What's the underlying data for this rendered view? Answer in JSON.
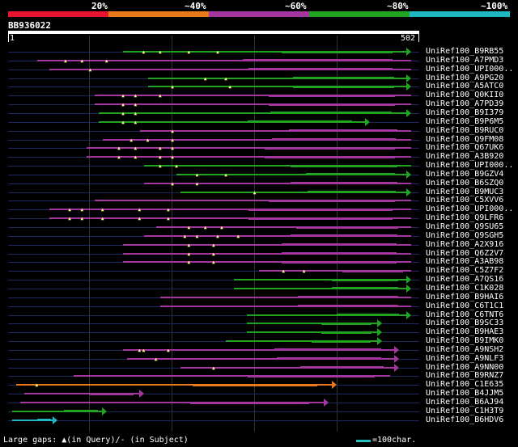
{
  "scale": {
    "labels": [
      "20%",
      "~40%",
      "~60%",
      "~80%",
      "~100%"
    ],
    "colors": [
      "#e8132e",
      "#e87a1c",
      "#a536a0",
      "#21a421",
      "#1fb8c0"
    ]
  },
  "query": {
    "id": "BB936022",
    "start": "1",
    "end": "502"
  },
  "legend": {
    "gaps": "Large gaps: ▲(in Query)/- (in Subject)",
    "scale": "=100char."
  },
  "hits": [
    {
      "label": "UniRef100_B9RB55",
      "color": "#21a421",
      "start": 0.28,
      "end": 0.98,
      "arrow": true,
      "gaps": [
        0.33,
        0.37,
        0.44,
        0.51
      ]
    },
    {
      "label": "UniRef100_A7PMD3",
      "color": "#a536a0",
      "start": 0.07,
      "end": 0.98,
      "arrow": false,
      "gaps": [
        0.14,
        0.18,
        0.24
      ]
    },
    {
      "label": "UniRef100_UPI000..",
      "color": "#a536a0",
      "start": 0.1,
      "end": 0.98,
      "arrow": false,
      "gaps": [
        0.2
      ]
    },
    {
      "label": "UniRef100_A9PG20",
      "color": "#21a421",
      "start": 0.34,
      "end": 0.98,
      "arrow": true,
      "gaps": [
        0.48,
        0.53
      ]
    },
    {
      "label": "UniRef100_A5ATC0",
      "color": "#21a421",
      "start": 0.34,
      "end": 0.98,
      "arrow": true,
      "gaps": [
        0.4,
        0.54
      ]
    },
    {
      "label": "UniRef100_Q0KII0",
      "color": "#a536a0",
      "start": 0.21,
      "end": 0.98,
      "arrow": false,
      "gaps": [
        0.28,
        0.31,
        0.37
      ]
    },
    {
      "label": "UniRef100_A7PD39",
      "color": "#a536a0",
      "start": 0.21,
      "end": 0.98,
      "arrow": false,
      "gaps": [
        0.28,
        0.31
      ]
    },
    {
      "label": "UniRef100_B9I379",
      "color": "#21a421",
      "start": 0.22,
      "end": 0.98,
      "arrow": true,
      "gaps": [
        0.28,
        0.31
      ]
    },
    {
      "label": "UniRef100_B9P6M5",
      "color": "#21a421",
      "start": 0.22,
      "end": 0.88,
      "arrow": true,
      "gaps": [
        0.28,
        0.31
      ]
    },
    {
      "label": "UniRef100_B9RUC0",
      "color": "#a536a0",
      "start": 0.32,
      "end": 0.98,
      "arrow": false,
      "gaps": [
        0.4
      ]
    },
    {
      "label": "UniRef100_Q9FM08",
      "color": "#a536a0",
      "start": 0.23,
      "end": 0.98,
      "arrow": false,
      "gaps": [
        0.3,
        0.34,
        0.4
      ]
    },
    {
      "label": "UniRef100_Q67UK6",
      "color": "#a536a0",
      "start": 0.19,
      "end": 0.98,
      "arrow": false,
      "gaps": [
        0.27,
        0.31,
        0.37,
        0.4
      ]
    },
    {
      "label": "UniRef100_A3B920",
      "color": "#a536a0",
      "start": 0.19,
      "end": 0.98,
      "arrow": false,
      "gaps": [
        0.27,
        0.31,
        0.37,
        0.4
      ]
    },
    {
      "label": "UniRef100_UPI000..",
      "color": "#21a421",
      "start": 0.33,
      "end": 0.98,
      "arrow": false,
      "gaps": [
        0.37,
        0.41
      ]
    },
    {
      "label": "UniRef100_B9GZV4",
      "color": "#21a421",
      "start": 0.41,
      "end": 0.98,
      "arrow": true,
      "gaps": [
        0.46,
        0.53
      ]
    },
    {
      "label": "UniRef100_B6SZQ0",
      "color": "#a536a0",
      "start": 0.33,
      "end": 0.98,
      "arrow": false,
      "gaps": [
        0.4,
        0.46
      ]
    },
    {
      "label": "UniRef100_B9MUC3",
      "color": "#21a421",
      "start": 0.42,
      "end": 0.98,
      "arrow": true,
      "gaps": [
        0.6
      ]
    },
    {
      "label": "UniRef100_C5XVV6",
      "color": "#a536a0",
      "start": 0.21,
      "end": 0.98,
      "arrow": false,
      "gaps": []
    },
    {
      "label": "UniRef100_UPI000..",
      "color": "#a536a0",
      "start": 0.1,
      "end": 0.98,
      "arrow": false,
      "gaps": [
        0.15,
        0.18,
        0.23,
        0.32,
        0.39
      ]
    },
    {
      "label": "UniRef100_Q9LFR6",
      "color": "#a536a0",
      "start": 0.1,
      "end": 0.98,
      "arrow": false,
      "gaps": [
        0.15,
        0.18,
        0.23,
        0.32,
        0.39
      ]
    },
    {
      "label": "UniRef100_Q9SU65",
      "color": "#a536a0",
      "start": 0.36,
      "end": 0.98,
      "arrow": false,
      "gaps": [
        0.44,
        0.48,
        0.52
      ]
    },
    {
      "label": "UniRef100_Q9SGH5",
      "color": "#a536a0",
      "start": 0.33,
      "end": 0.98,
      "arrow": false,
      "gaps": [
        0.43,
        0.46,
        0.51,
        0.56
      ]
    },
    {
      "label": "UniRef100_A2X916",
      "color": "#a536a0",
      "start": 0.28,
      "end": 0.98,
      "arrow": false,
      "gaps": [
        0.44,
        0.5
      ]
    },
    {
      "label": "UniRef100_Q6Z2V7",
      "color": "#a536a0",
      "start": 0.28,
      "end": 0.98,
      "arrow": false,
      "gaps": [
        0.44,
        0.5
      ]
    },
    {
      "label": "UniRef100_A3AB98",
      "color": "#a536a0",
      "start": 0.28,
      "end": 0.98,
      "arrow": false,
      "gaps": [
        0.44,
        0.5
      ]
    },
    {
      "label": "UniRef100_C5Z7F2",
      "color": "#a536a0",
      "start": 0.61,
      "end": 0.98,
      "arrow": false,
      "gaps": [
        0.67,
        0.72
      ]
    },
    {
      "label": "UniRef100_A7QS16",
      "color": "#21a421",
      "start": 0.55,
      "end": 0.98,
      "arrow": true,
      "gaps": []
    },
    {
      "label": "UniRef100_C1K028",
      "color": "#21a421",
      "start": 0.55,
      "end": 0.98,
      "arrow": true,
      "gaps": []
    },
    {
      "label": "UniRef100_B9HAI6",
      "color": "#a536a0",
      "start": 0.37,
      "end": 0.98,
      "arrow": false,
      "gaps": []
    },
    {
      "label": "UniRef100_C6T1C1",
      "color": "#a536a0",
      "start": 0.37,
      "end": 0.98,
      "arrow": false,
      "gaps": []
    },
    {
      "label": "UniRef100_C6TNT6",
      "color": "#21a421",
      "start": 0.58,
      "end": 0.98,
      "arrow": true,
      "gaps": []
    },
    {
      "label": "UniRef100_B9SC33",
      "color": "#21a421",
      "start": 0.58,
      "end": 0.91,
      "arrow": true,
      "gaps": []
    },
    {
      "label": "UniRef100_B9HAE3",
      "color": "#21a421",
      "start": 0.58,
      "end": 0.91,
      "arrow": true,
      "gaps": []
    },
    {
      "label": "UniRef100_B9IMK0",
      "color": "#21a421",
      "start": 0.53,
      "end": 0.91,
      "arrow": true,
      "gaps": []
    },
    {
      "label": "UniRef100_A9NSH2",
      "color": "#a536a0",
      "start": 0.28,
      "end": 0.95,
      "arrow": true,
      "gaps": [
        0.32,
        0.33,
        0.39
      ]
    },
    {
      "label": "UniRef100_A9NLF3",
      "color": "#a536a0",
      "start": 0.29,
      "end": 0.95,
      "arrow": true,
      "gaps": [
        0.36
      ]
    },
    {
      "label": "UniRef100_A9NN00",
      "color": "#a536a0",
      "start": 0.42,
      "end": 0.95,
      "arrow": true,
      "gaps": [
        0.5
      ]
    },
    {
      "label": "UniRef100_B9RNZ7",
      "color": "#a536a0",
      "start": 0.16,
      "end": 0.93,
      "arrow": false,
      "gaps": []
    },
    {
      "label": "UniRef100_C1E635",
      "color": "#e87a1c",
      "start": 0.02,
      "end": 0.8,
      "arrow": true,
      "gaps": [
        0.07
      ]
    },
    {
      "label": "UniRef100_B4JJM5",
      "color": "#a536a0",
      "start": 0.04,
      "end": 0.33,
      "arrow": true,
      "gaps": []
    },
    {
      "label": "UniRef100_B6AJ94",
      "color": "#a536a0",
      "start": 0.03,
      "end": 0.78,
      "arrow": true,
      "gaps": []
    },
    {
      "label": "UniRef100_C1H3T9",
      "color": "#21a421",
      "start": 0.01,
      "end": 0.24,
      "arrow": true,
      "gaps": []
    },
    {
      "label": "UniRef100_B6HDV6",
      "color": "#1fb8c0",
      "start": 0.01,
      "end": 0.12,
      "arrow": true,
      "gaps": []
    }
  ]
}
